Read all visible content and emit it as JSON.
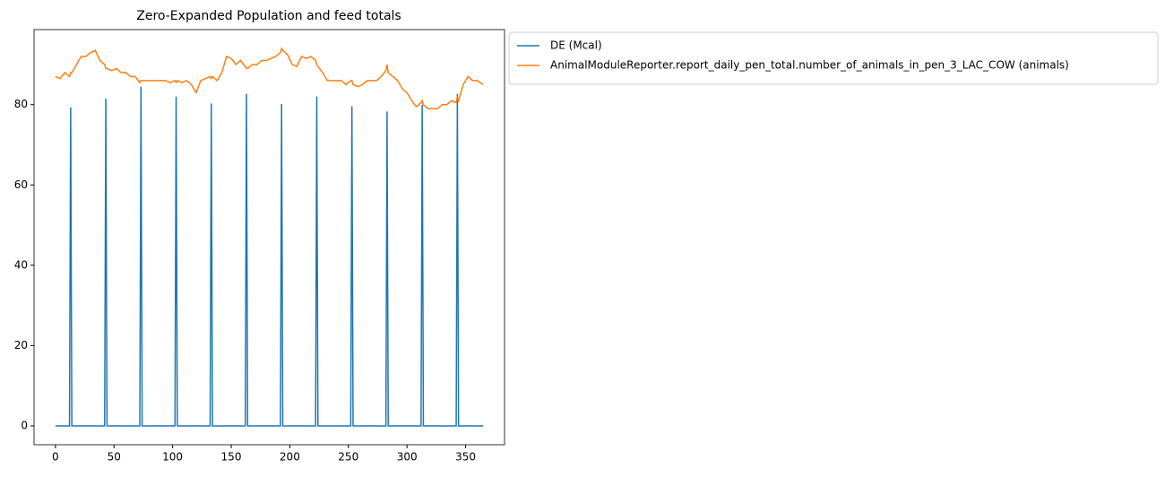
{
  "chart_data": {
    "type": "line",
    "title": "Zero-Expanded Population and feed totals",
    "x": [
      0,
      4,
      8,
      12,
      13,
      14,
      18,
      22,
      26,
      30,
      34,
      38,
      42,
      43,
      44,
      48,
      52,
      56,
      60,
      64,
      68,
      72,
      73,
      74,
      78,
      82,
      86,
      90,
      94,
      98,
      102,
      103,
      104,
      108,
      112,
      116,
      120,
      124,
      128,
      132,
      133,
      134,
      138,
      142,
      146,
      150,
      154,
      158,
      162,
      163,
      164,
      168,
      172,
      176,
      180,
      184,
      188,
      192,
      193,
      194,
      198,
      202,
      206,
      210,
      214,
      218,
      222,
      223,
      224,
      228,
      232,
      236,
      240,
      244,
      248,
      252,
      253,
      254,
      258,
      262,
      266,
      270,
      274,
      278,
      282,
      283,
      284,
      288,
      292,
      296,
      300,
      304,
      308,
      312,
      313,
      314,
      318,
      322,
      326,
      330,
      334,
      338,
      342,
      343,
      344,
      348,
      352,
      356,
      360,
      365
    ],
    "series": [
      {
        "name": "DE (Mcal)",
        "color": "#1f77b4",
        "values": [
          0,
          0,
          0,
          0,
          79.3,
          0,
          0,
          0,
          0,
          0,
          0,
          0,
          0,
          81.5,
          0,
          0,
          0,
          0,
          0,
          0,
          0,
          0,
          84.5,
          0,
          0,
          0,
          0,
          0,
          0,
          0,
          0,
          82,
          0,
          0,
          0,
          0,
          0,
          0,
          0,
          0,
          80.3,
          0,
          0,
          0,
          0,
          0,
          0,
          0,
          0,
          82.7,
          0,
          0,
          0,
          0,
          0,
          0,
          0,
          0,
          80.2,
          0,
          0,
          0,
          0,
          0,
          0,
          0,
          0,
          82,
          0,
          0,
          0,
          0,
          0,
          0,
          0,
          0,
          79.6,
          0,
          0,
          0,
          0,
          0,
          0,
          0,
          0,
          78.3,
          0,
          0,
          0,
          0,
          0,
          0,
          0,
          0,
          80,
          0,
          0,
          0,
          0,
          0,
          0,
          0,
          0,
          82.7,
          0,
          0,
          0,
          0,
          0,
          0
        ]
      },
      {
        "name": "AnimalModuleReporter.report_daily_pen_total.number_of_animals_in_pen_3_LAC_COW (animals)",
        "color": "#ff7f0e",
        "values": [
          87,
          86.5,
          88,
          87,
          88,
          88,
          90,
          92,
          92,
          93,
          93.5,
          91,
          90,
          89,
          89,
          88.5,
          89,
          88,
          88,
          87,
          87,
          85.5,
          86,
          86,
          86,
          86,
          86,
          86,
          86,
          85.5,
          86,
          85.5,
          86,
          85.5,
          86,
          85,
          83,
          86,
          86.5,
          87,
          86.5,
          87,
          86,
          88,
          92,
          91.5,
          90,
          91,
          89.5,
          89,
          89,
          90,
          90,
          91,
          91,
          91.5,
          92,
          93,
          94,
          93.5,
          92.5,
          90,
          89.5,
          92,
          91.5,
          92,
          91,
          90,
          89.5,
          88,
          86,
          86,
          86,
          86,
          85,
          86,
          86,
          85,
          84.5,
          85,
          86,
          86,
          86,
          87,
          88.5,
          90,
          88,
          87,
          86,
          84,
          83,
          81,
          79.5,
          80.5,
          81,
          80,
          79,
          79,
          79,
          80,
          80,
          81,
          80.5,
          82,
          81,
          85,
          87,
          86,
          86,
          85
        ]
      }
    ],
    "xlim": [
      -18.25,
      383.25
    ],
    "xticks": [
      0,
      50,
      100,
      150,
      200,
      250,
      300,
      350
    ],
    "ylim": [
      -4.7,
      98.7
    ],
    "yticks": [
      0,
      20,
      40,
      60,
      80
    ],
    "grid": false,
    "legend": "outside upper right"
  }
}
